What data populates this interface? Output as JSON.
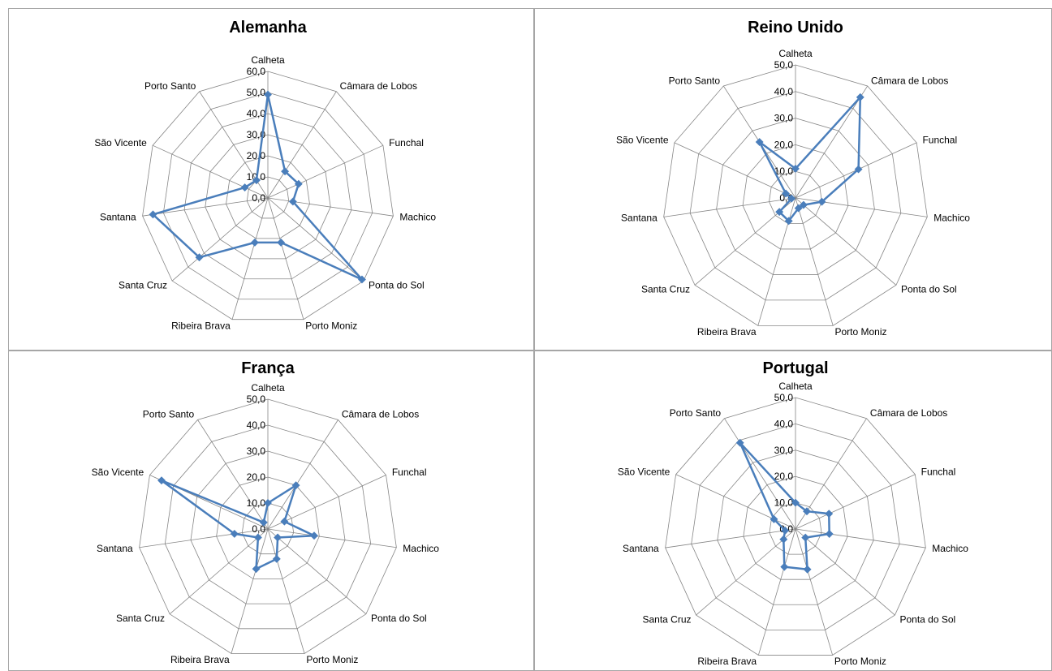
{
  "chart_data": [
    {
      "type": "radar",
      "title": "Alemanha",
      "categories": [
        "Calheta",
        "Câmara de Lobos",
        "Funchal",
        "Machico",
        "Ponta do Sol",
        "Porto Moniz",
        "Ribeira Brava",
        "Santa Cruz",
        "Santana",
        "São Vicente",
        "Porto Santo"
      ],
      "values": [
        49.0,
        15.0,
        16.0,
        12.0,
        59.0,
        22.0,
        22.0,
        43.0,
        55.0,
        12.0,
        10.0
      ],
      "ylim": [
        0,
        60
      ],
      "ticks": [
        "0,0",
        "10,0",
        "20,0",
        "30,0",
        "40,0",
        "50,0",
        "60,0"
      ],
      "series_color": "#4a7ebb",
      "grid": true
    },
    {
      "type": "radar",
      "title": "Reino Unido",
      "categories": [
        "Calheta",
        "Câmara de Lobos",
        "Funchal",
        "Machico",
        "Ponta do Sol",
        "Porto Moniz",
        "Ribeira Brava",
        "Santa Cruz",
        "Santana",
        "São Vicente",
        "Porto Santo"
      ],
      "values": [
        11.0,
        45.0,
        26.0,
        10.0,
        4.0,
        4.0,
        9.0,
        8.0,
        1.5,
        4.0,
        25.0
      ],
      "ylim": [
        0,
        50
      ],
      "ticks": [
        "0,0",
        "10,0",
        "20,0",
        "30,0",
        "40,0",
        "50,0"
      ],
      "series_color": "#4a7ebb",
      "grid": true
    },
    {
      "type": "radar",
      "title": "França",
      "categories": [
        "Calheta",
        "Câmara de Lobos",
        "Funchal",
        "Machico",
        "Ponta do Sol",
        "Porto Moniz",
        "Ribeira Brava",
        "Santa Cruz",
        "Santana",
        "São Vicente",
        "Porto Santo"
      ],
      "values": [
        10.0,
        20.0,
        7.0,
        18.0,
        5.0,
        12.0,
        16.0,
        5.0,
        13.0,
        45.0,
        3.0
      ],
      "ylim": [
        0,
        50
      ],
      "ticks": [
        "0,0",
        "10,0",
        "20,0",
        "30,0",
        "40,0",
        "50,0"
      ],
      "series_color": "#4a7ebb",
      "grid": true
    },
    {
      "type": "radar",
      "title": "Portugal",
      "categories": [
        "Calheta",
        "Câmara de Lobos",
        "Funchal",
        "Machico",
        "Ponta do Sol",
        "Porto Moniz",
        "Ribeira Brava",
        "Santa Cruz",
        "Santana",
        "São Vicente",
        "Porto Santo"
      ],
      "values": [
        10.0,
        8.0,
        14.0,
        13.0,
        5.0,
        16.0,
        15.0,
        6.0,
        4.0,
        9.0,
        39.0
      ],
      "ylim": [
        0,
        50
      ],
      "ticks": [
        "0,0",
        "10,0",
        "20,0",
        "30,0",
        "40,0",
        "50,0"
      ],
      "series_color": "#4a7ebb",
      "grid": true
    }
  ]
}
